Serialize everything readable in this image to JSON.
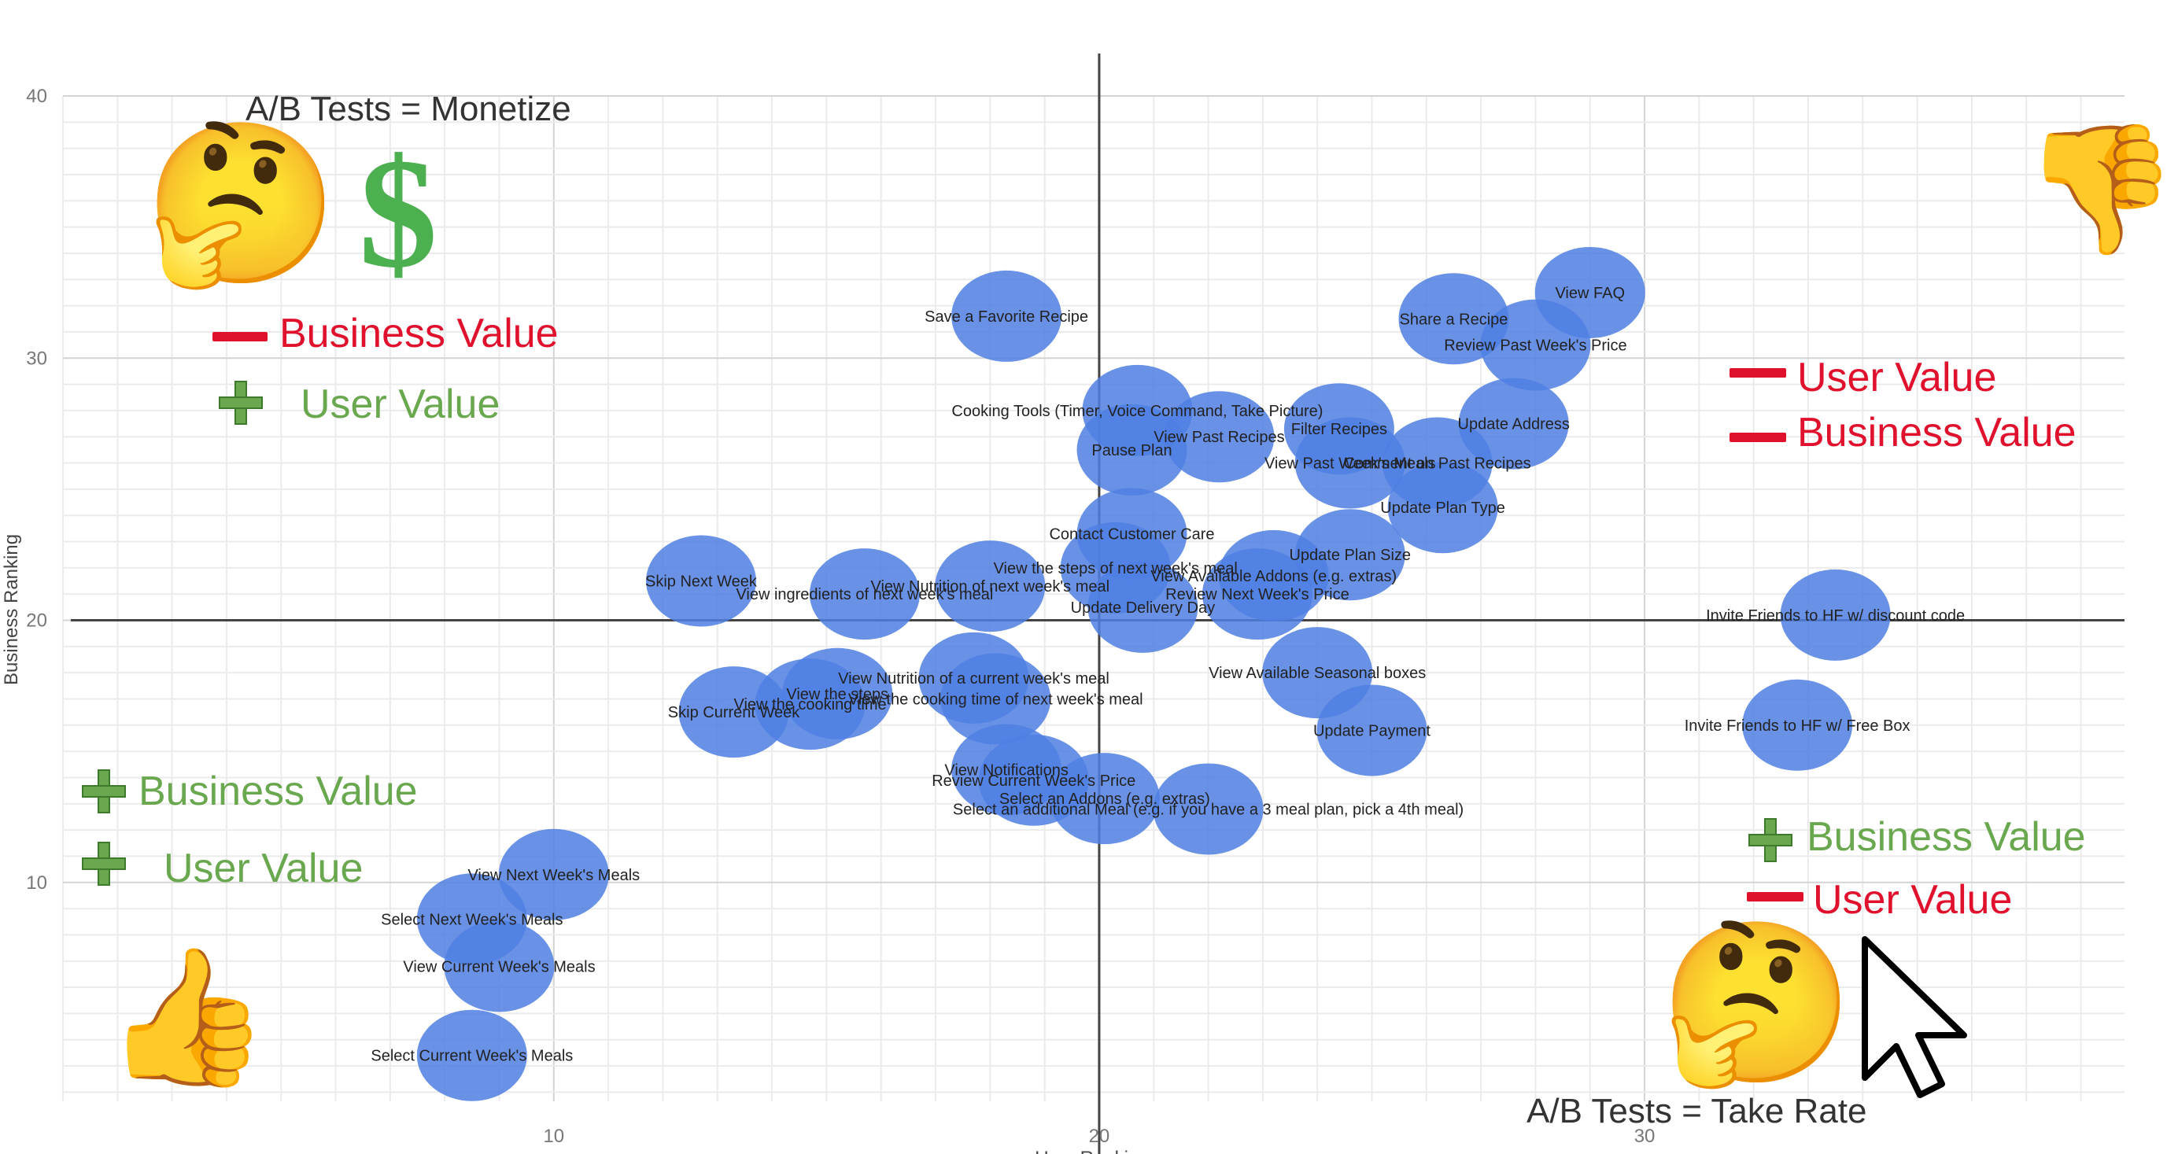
{
  "chart_data": {
    "type": "scatter",
    "xlabel": "User Ranking",
    "ylabel": "Business Ranking",
    "xlim": [
      1,
      38.8
    ],
    "ylim": [
      0,
      40
    ],
    "x_ticks": [
      "10",
      "20",
      "30"
    ],
    "y_ticks": [
      "10",
      "20",
      "30",
      "40"
    ],
    "grid": true,
    "divider_x": 20,
    "divider_y": 20,
    "point_color": "#4f7fe3",
    "points": [
      {
        "label": "View FAQ",
        "x": 29.0,
        "y": 32.5
      },
      {
        "label": "Share a Recipe",
        "x": 26.5,
        "y": 31.5
      },
      {
        "label": "Review Past Week's Price",
        "x": 28.0,
        "y": 30.5
      },
      {
        "label": "Save a Favorite Recipe",
        "x": 18.3,
        "y": 31.6
      },
      {
        "label": "Cooking Tools (Timer, Voice Command, Take Picture)",
        "x": 20.7,
        "y": 28.0
      },
      {
        "label": "View Past Recipes",
        "x": 22.2,
        "y": 27.0
      },
      {
        "label": "Filter Recipes",
        "x": 24.4,
        "y": 27.3
      },
      {
        "label": "Update Address",
        "x": 27.6,
        "y": 27.5
      },
      {
        "label": "Pause Plan",
        "x": 20.6,
        "y": 26.5
      },
      {
        "label": "View Past Week's Meals",
        "x": 24.6,
        "y": 26.0
      },
      {
        "label": "Comment on Past Recipes",
        "x": 26.2,
        "y": 26.0
      },
      {
        "label": "Update Plan Type",
        "x": 26.3,
        "y": 24.3
      },
      {
        "label": "Contact Customer Care",
        "x": 20.6,
        "y": 23.3
      },
      {
        "label": "Update Plan Size",
        "x": 24.6,
        "y": 22.5
      },
      {
        "label": "View the steps of next week's meal",
        "x": 20.3,
        "y": 22.0
      },
      {
        "label": "View Available Addons (e.g. extras)",
        "x": 23.2,
        "y": 21.7
      },
      {
        "label": "Skip Next Week",
        "x": 12.7,
        "y": 21.5
      },
      {
        "label": "View ingredients of next week's meal",
        "x": 15.7,
        "y": 21.0
      },
      {
        "label": "View Nutrition of next week's meal",
        "x": 18.0,
        "y": 21.3
      },
      {
        "label": "Review Next Week's Price",
        "x": 22.9,
        "y": 21.0
      },
      {
        "label": "Update Delivery Day",
        "x": 20.8,
        "y": 20.5
      },
      {
        "label": "Invite Friends to HF w/ discount code",
        "x": 33.5,
        "y": 20.2
      },
      {
        "label": "View Available Seasonal boxes",
        "x": 24.0,
        "y": 18.0
      },
      {
        "label": "View Nutrition of a current week's meal",
        "x": 17.7,
        "y": 17.8
      },
      {
        "label": "View the steps",
        "x": 15.2,
        "y": 17.2
      },
      {
        "label": "View the cooking time of next week's meal",
        "x": 18.1,
        "y": 17.0
      },
      {
        "label": "View the cooking time",
        "x": 14.7,
        "y": 16.8
      },
      {
        "label": "Skip Current Week",
        "x": 13.3,
        "y": 16.5
      },
      {
        "label": "Update Payment",
        "x": 25.0,
        "y": 15.8
      },
      {
        "label": "Invite Friends to HF w/ Free Box",
        "x": 32.8,
        "y": 16.0
      },
      {
        "label": "View Notifications",
        "x": 18.3,
        "y": 14.3
      },
      {
        "label": "Review Current Week's Price",
        "x": 18.8,
        "y": 13.9
      },
      {
        "label": "Select an Addons (e.g. extras)",
        "x": 20.1,
        "y": 13.2
      },
      {
        "label": "Select an additional Meal (e.g. if you have a 3 meal plan, pick a 4th meal)",
        "x": 22.0,
        "y": 12.8
      },
      {
        "label": "View Next Week's Meals",
        "x": 10.0,
        "y": 10.3
      },
      {
        "label": "Select Next Week's Meals",
        "x": 8.5,
        "y": 8.6
      },
      {
        "label": "View Current Week's Meals",
        "x": 9.0,
        "y": 6.8
      },
      {
        "label": "Select Current Week's Meals",
        "x": 8.5,
        "y": 3.4
      }
    ]
  },
  "annotations": {
    "top_left_title": "A/B Tests = Monetize",
    "bottom_right_title": "A/B Tests = Take Rate",
    "top_left": {
      "line1": "Business Value",
      "line2": "User Value"
    },
    "top_right": {
      "line1": "User Value",
      "line2": "Business Value"
    },
    "bottom_left": {
      "line1": "Business Value",
      "line2": "User Value"
    },
    "bottom_right": {
      "line1": "Business Value",
      "line2": "User Value"
    },
    "dollar_sign": "$"
  },
  "icons": {
    "thinking_face": "🤔",
    "thumbs_up": "👍",
    "thumbs_down": "👎",
    "cursor": "arrow-cursor-icon"
  }
}
